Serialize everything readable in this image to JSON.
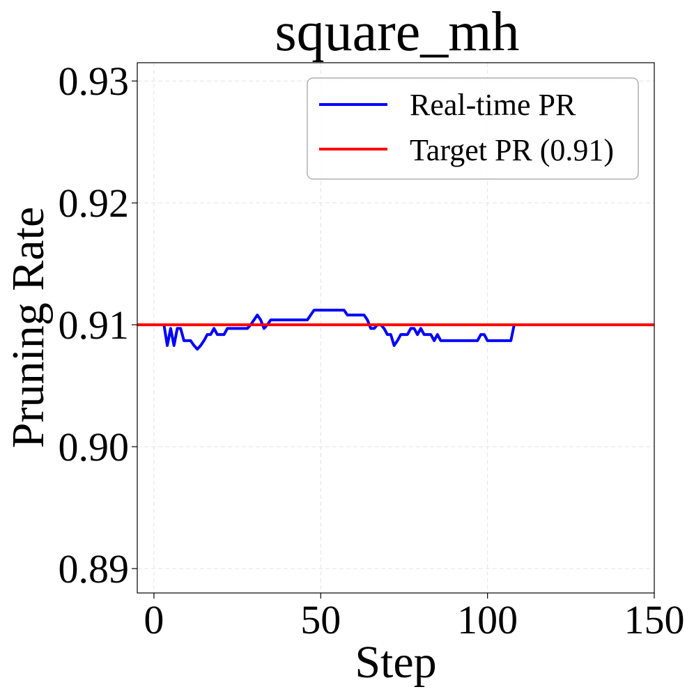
{
  "chart_data": {
    "type": "line",
    "title": "square_mh",
    "xlabel": "Step",
    "ylabel": "Pruning Rate",
    "xlim": [
      -5,
      150
    ],
    "ylim": [
      0.888,
      0.9315
    ],
    "xticks": [
      0,
      50,
      100,
      150
    ],
    "xtick_labels": [
      "0",
      "50",
      "100",
      "150"
    ],
    "yticks": [
      0.89,
      0.9,
      0.91,
      0.92,
      0.93
    ],
    "ytick_labels": [
      "0.89",
      "0.90",
      "0.91",
      "0.92",
      "0.93"
    ],
    "grid": true,
    "legend_position": "top-right",
    "series": [
      {
        "name": "Real-time PR",
        "color": "#0000ff",
        "x": [
          3,
          4,
          5,
          6,
          7,
          8,
          9,
          10,
          11,
          12,
          13,
          14,
          15,
          16,
          17,
          18,
          19,
          20,
          21,
          22,
          23,
          24,
          25,
          26,
          27,
          28,
          29,
          30,
          31,
          32,
          33,
          34,
          35,
          36,
          37,
          38,
          39,
          40,
          41,
          42,
          43,
          44,
          45,
          46,
          47,
          48,
          49,
          50,
          51,
          52,
          53,
          54,
          55,
          56,
          57,
          58,
          59,
          60,
          61,
          62,
          63,
          64,
          65,
          66,
          67,
          68,
          69,
          70,
          71,
          72,
          73,
          74,
          75,
          76,
          77,
          78,
          79,
          80,
          81,
          82,
          83,
          84,
          85,
          86,
          87,
          88,
          89,
          90,
          91,
          92,
          93,
          94,
          95,
          96,
          97,
          98,
          99,
          100,
          101,
          102,
          103,
          104,
          105,
          106,
          107,
          108
        ],
        "y": [
          0.91,
          0.9083,
          0.9097,
          0.9083,
          0.9097,
          0.9097,
          0.9087,
          0.9087,
          0.9087,
          0.9083,
          0.908,
          0.9083,
          0.9087,
          0.9092,
          0.9092,
          0.9097,
          0.9092,
          0.9092,
          0.9092,
          0.9097,
          0.9097,
          0.9097,
          0.9097,
          0.9097,
          0.9097,
          0.9097,
          0.91,
          0.9104,
          0.9108,
          0.9104,
          0.9097,
          0.91,
          0.9104,
          0.9104,
          0.9104,
          0.9104,
          0.9104,
          0.9104,
          0.9104,
          0.9104,
          0.9104,
          0.9104,
          0.9104,
          0.9104,
          0.9108,
          0.9112,
          0.9112,
          0.9112,
          0.9112,
          0.9112,
          0.9112,
          0.9112,
          0.9112,
          0.9112,
          0.9112,
          0.9108,
          0.9108,
          0.9108,
          0.9108,
          0.9108,
          0.9108,
          0.9104,
          0.9097,
          0.9097,
          0.91,
          0.91,
          0.9097,
          0.9092,
          0.9092,
          0.9083,
          0.9087,
          0.9092,
          0.9092,
          0.9092,
          0.9097,
          0.9097,
          0.9092,
          0.9097,
          0.9092,
          0.9092,
          0.9092,
          0.9087,
          0.9092,
          0.9087,
          0.9087,
          0.9087,
          0.9087,
          0.9087,
          0.9087,
          0.9087,
          0.9087,
          0.9087,
          0.9087,
          0.9087,
          0.9087,
          0.9092,
          0.9092,
          0.9087,
          0.9087,
          0.9087,
          0.9087,
          0.9087,
          0.9087,
          0.9087,
          0.9087,
          0.91
        ]
      },
      {
        "name": "Target PR (0.91)",
        "color": "#ff0000",
        "x": [
          -5,
          150
        ],
        "y": [
          0.91,
          0.91
        ]
      }
    ]
  }
}
